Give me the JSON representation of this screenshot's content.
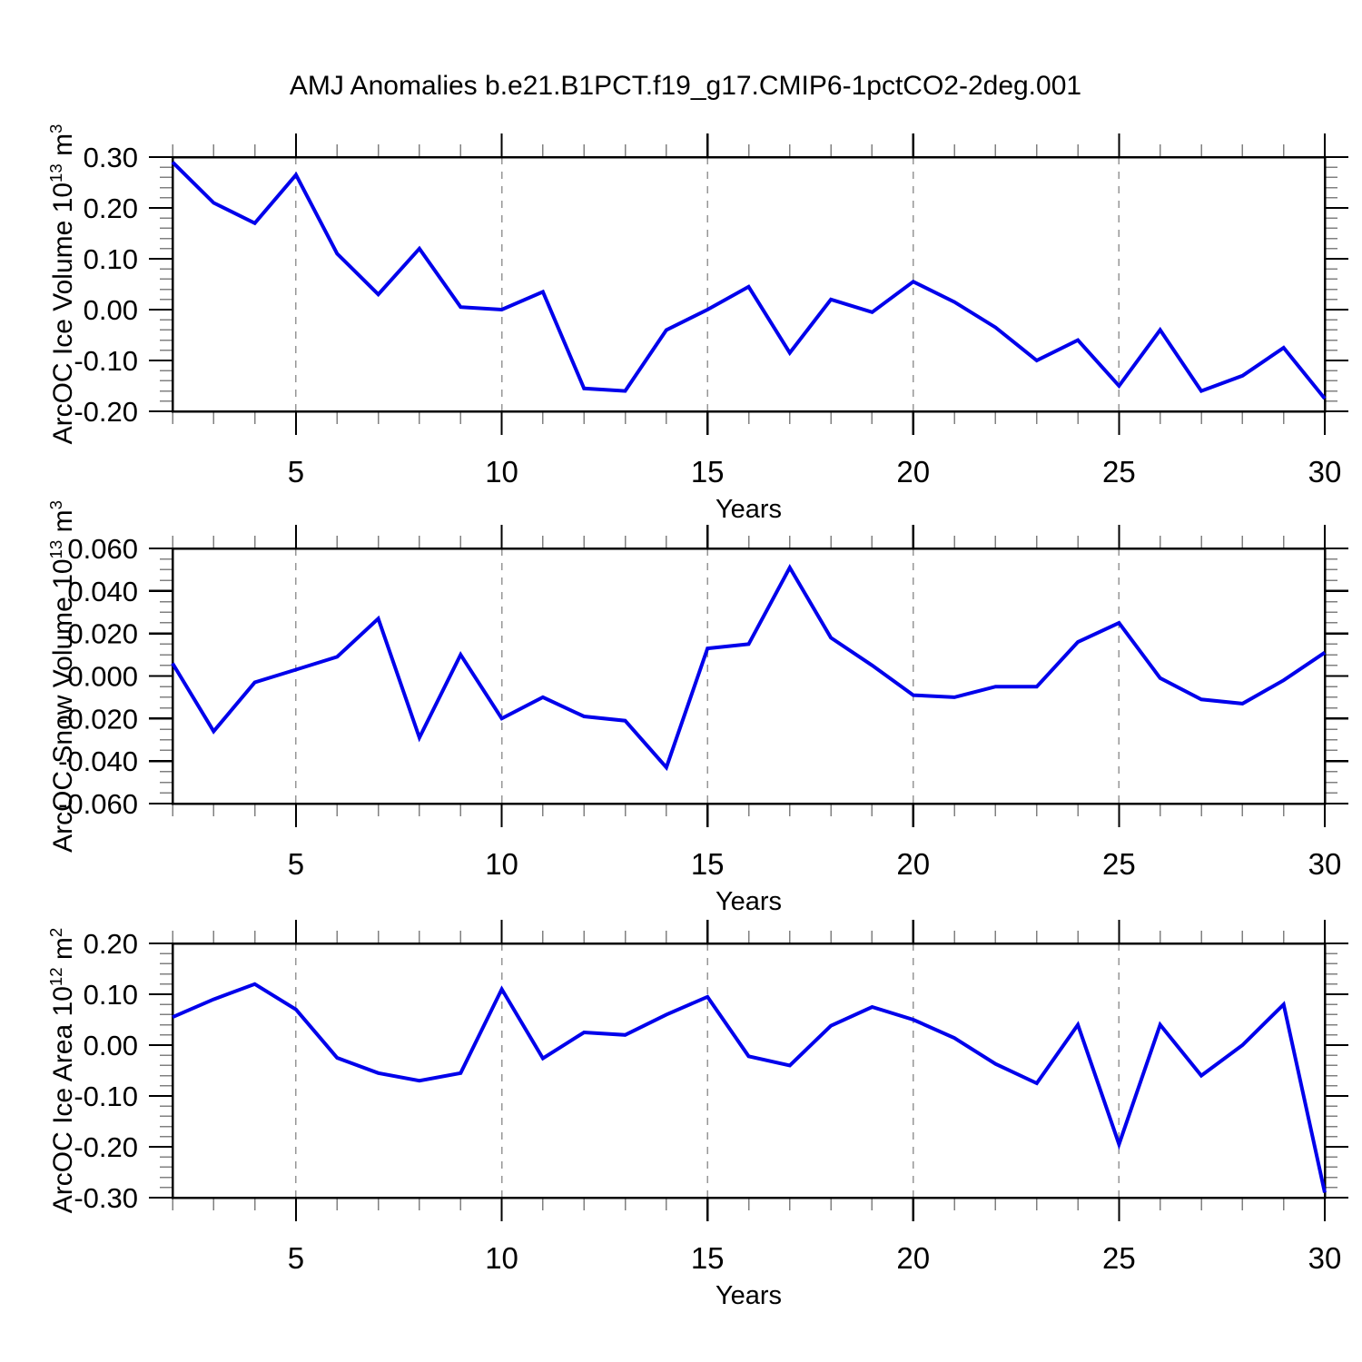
{
  "title": "AMJ Anomalies b.e21.B1PCT.f19_g17.CMIP6-1pctCO2-2deg.001",
  "colors": {
    "line": "#0000EB",
    "axis": "#000000",
    "grid": "#969696",
    "minor_tick": "#808080",
    "major_tick": "#000000"
  },
  "chart_data": [
    {
      "type": "line",
      "name": "ice-volume",
      "y_label_parts": [
        "ArcOC Ice Volume 10",
        "13",
        " m",
        "3"
      ],
      "xlabel": "Years",
      "x_start": 2,
      "x_end": 30,
      "x_major_ticks": [
        5,
        10,
        15,
        20,
        25,
        30
      ],
      "x_minor_step": 1,
      "grid_x": [
        5,
        10,
        15,
        20,
        25
      ],
      "ylim": [
        -0.2,
        0.3
      ],
      "y_major_step": 0.1,
      "y_minor_step": 0.02,
      "y_tick_labels": [
        "0.30",
        "0.20",
        "0.10",
        "0.00",
        "-0.10",
        "-0.20"
      ],
      "x": [
        2,
        3,
        4,
        5,
        6,
        7,
        8,
        9,
        10,
        11,
        12,
        13,
        14,
        15,
        16,
        17,
        18,
        19,
        20,
        21,
        22,
        23,
        24,
        25,
        26,
        27,
        28,
        29,
        30
      ],
      "values": [
        0.29,
        0.21,
        0.17,
        0.265,
        0.11,
        0.03,
        0.12,
        0.005,
        0.0,
        0.035,
        -0.155,
        -0.16,
        -0.04,
        0.0,
        0.045,
        -0.085,
        0.02,
        -0.005,
        0.055,
        0.015,
        -0.035,
        -0.1,
        -0.06,
        -0.15,
        -0.04,
        -0.16,
        -0.13,
        -0.075,
        -0.175
      ]
    },
    {
      "type": "line",
      "name": "snow-volume",
      "y_label_parts": [
        "ArcOC Snow Volume 10",
        "13",
        " m",
        "3"
      ],
      "xlabel": "Years",
      "x_start": 2,
      "x_end": 30,
      "x_major_ticks": [
        5,
        10,
        15,
        20,
        25,
        30
      ],
      "x_minor_step": 1,
      "grid_x": [
        5,
        10,
        15,
        20,
        25
      ],
      "ylim": [
        -0.06,
        0.06
      ],
      "y_major_step": 0.02,
      "y_minor_step": 0.005,
      "y_tick_labels": [
        "0.060",
        "0.040",
        "0.020",
        "0.000",
        "-0.020",
        "-0.040",
        "-0.060"
      ],
      "x": [
        2,
        3,
        4,
        5,
        6,
        7,
        8,
        9,
        10,
        11,
        12,
        13,
        14,
        15,
        16,
        17,
        18,
        19,
        20,
        21,
        22,
        23,
        24,
        25,
        26,
        27,
        28,
        29,
        30
      ],
      "values": [
        0.006,
        -0.026,
        -0.003,
        0.003,
        0.009,
        0.027,
        -0.029,
        0.01,
        -0.02,
        -0.01,
        -0.019,
        -0.021,
        -0.043,
        0.013,
        0.015,
        0.051,
        0.018,
        0.005,
        -0.009,
        -0.01,
        -0.005,
        -0.005,
        0.016,
        0.025,
        -0.001,
        -0.011,
        -0.013,
        -0.002,
        0.011
      ]
    },
    {
      "type": "line",
      "name": "ice-area",
      "y_label_parts": [
        "ArcOC Ice Area 10",
        "12",
        " m",
        "2"
      ],
      "xlabel": "Years",
      "x_start": 2,
      "x_end": 30,
      "x_major_ticks": [
        5,
        10,
        15,
        20,
        25,
        30
      ],
      "x_minor_step": 1,
      "grid_x": [
        5,
        10,
        15,
        20,
        25
      ],
      "ylim": [
        -0.3,
        0.2
      ],
      "y_major_step": 0.1,
      "y_minor_step": 0.02,
      "y_tick_labels": [
        "0.20",
        "0.10",
        "0.00",
        "-0.10",
        "-0.20",
        "-0.30"
      ],
      "x": [
        2,
        3,
        4,
        5,
        6,
        7,
        8,
        9,
        10,
        11,
        12,
        13,
        14,
        15,
        16,
        17,
        18,
        19,
        20,
        21,
        22,
        23,
        24,
        25,
        26,
        27,
        28,
        29,
        30
      ],
      "values": [
        0.055,
        0.09,
        0.12,
        0.07,
        -0.025,
        -0.055,
        -0.07,
        -0.055,
        0.11,
        -0.026,
        0.025,
        0.02,
        0.06,
        0.095,
        -0.022,
        -0.04,
        0.038,
        0.075,
        0.05,
        0.014,
        -0.037,
        -0.075,
        0.04,
        -0.195,
        0.04,
        -0.06,
        0.0,
        0.08,
        -0.29
      ]
    }
  ]
}
